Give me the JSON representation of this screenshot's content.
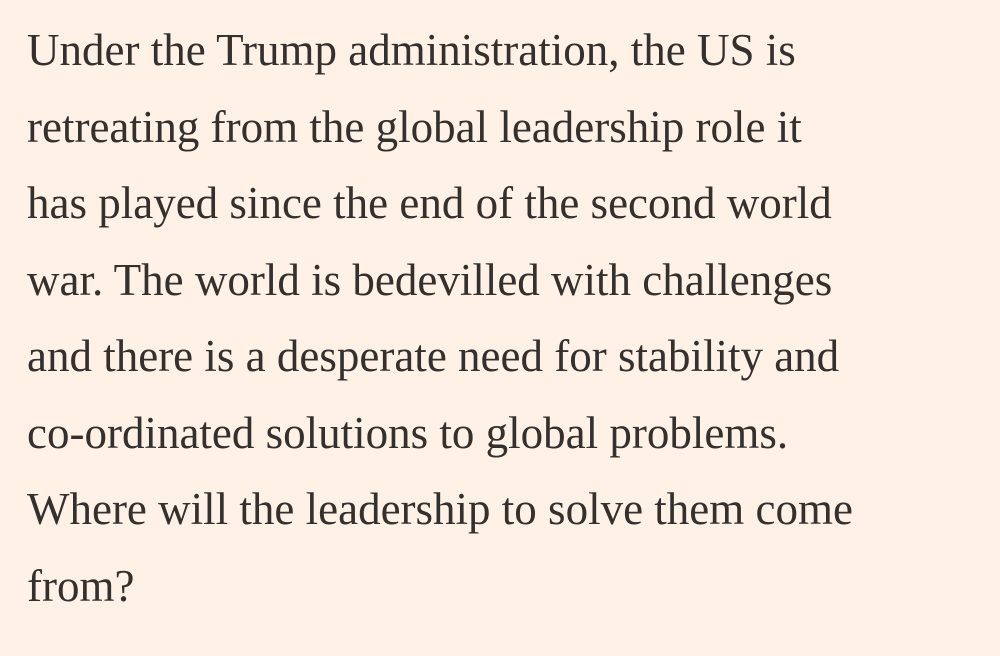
{
  "paragraph": {
    "lines": [
      "Under the Trump administration, the US is",
      "retreating from the global leadership role it",
      "has played since the end of the second world",
      "war. The world is bedevilled with challenges",
      "and there is a desperate need for stability and",
      "co-ordinated solutions to global problems.",
      "Where will the leadership to solve them come",
      "from?"
    ]
  }
}
